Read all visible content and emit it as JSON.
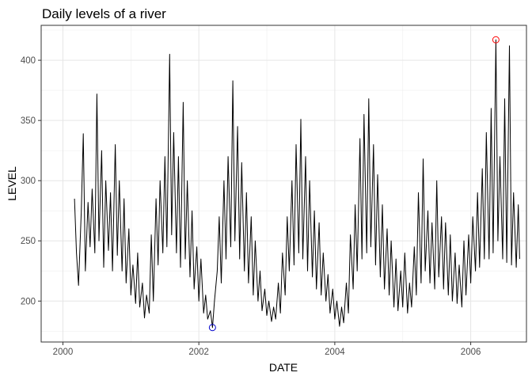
{
  "chart_data": {
    "type": "line",
    "title": "Daily levels of a river",
    "xlabel": "DATE",
    "ylabel": "LEVEL",
    "x_ticks": [
      "2000",
      "2002",
      "2004",
      "2006"
    ],
    "y_ticks": [
      200,
      250,
      300,
      350,
      400
    ],
    "xlim": [
      1999.68,
      2006.82
    ],
    "ylim": [
      166,
      429
    ],
    "grid": true,
    "line_color": "#000000",
    "series": [
      {
        "points": [
          [
            2000.17,
            285
          ],
          [
            2000.2,
            240
          ],
          [
            2000.23,
            213
          ],
          [
            2000.27,
            275
          ],
          [
            2000.3,
            339
          ],
          [
            2000.33,
            225
          ],
          [
            2000.37,
            282
          ],
          [
            2000.4,
            245
          ],
          [
            2000.43,
            293
          ],
          [
            2000.47,
            240
          ],
          [
            2000.5,
            372
          ],
          [
            2000.53,
            250
          ],
          [
            2000.57,
            325
          ],
          [
            2000.6,
            228
          ],
          [
            2000.63,
            300
          ],
          [
            2000.67,
            242
          ],
          [
            2000.7,
            290
          ],
          [
            2000.73,
            225
          ],
          [
            2000.77,
            330
          ],
          [
            2000.8,
            238
          ],
          [
            2000.83,
            300
          ],
          [
            2000.87,
            225
          ],
          [
            2000.9,
            285
          ],
          [
            2000.93,
            215
          ],
          [
            2000.97,
            260
          ],
          [
            2001.0,
            205
          ],
          [
            2001.03,
            230
          ],
          [
            2001.07,
            198
          ],
          [
            2001.1,
            240
          ],
          [
            2001.13,
            195
          ],
          [
            2001.17,
            215
          ],
          [
            2001.2,
            186
          ],
          [
            2001.23,
            205
          ],
          [
            2001.27,
            190
          ],
          [
            2001.3,
            255
          ],
          [
            2001.33,
            200
          ],
          [
            2001.37,
            285
          ],
          [
            2001.4,
            230
          ],
          [
            2001.43,
            300
          ],
          [
            2001.47,
            240
          ],
          [
            2001.5,
            320
          ],
          [
            2001.53,
            245
          ],
          [
            2001.57,
            405
          ],
          [
            2001.6,
            255
          ],
          [
            2001.63,
            340
          ],
          [
            2001.67,
            240
          ],
          [
            2001.7,
            320
          ],
          [
            2001.73,
            228
          ],
          [
            2001.77,
            365
          ],
          [
            2001.8,
            235
          ],
          [
            2001.83,
            300
          ],
          [
            2001.87,
            220
          ],
          [
            2001.9,
            275
          ],
          [
            2001.93,
            210
          ],
          [
            2001.97,
            245
          ],
          [
            2002.0,
            200
          ],
          [
            2002.03,
            235
          ],
          [
            2002.07,
            190
          ],
          [
            2002.1,
            205
          ],
          [
            2002.13,
            185
          ],
          [
            2002.17,
            192
          ],
          [
            2002.2,
            178
          ],
          [
            2002.23,
            200
          ],
          [
            2002.27,
            225
          ],
          [
            2002.3,
            270
          ],
          [
            2002.33,
            215
          ],
          [
            2002.37,
            300
          ],
          [
            2002.4,
            235
          ],
          [
            2002.43,
            320
          ],
          [
            2002.47,
            245
          ],
          [
            2002.5,
            383
          ],
          [
            2002.53,
            250
          ],
          [
            2002.57,
            345
          ],
          [
            2002.6,
            235
          ],
          [
            2002.63,
            315
          ],
          [
            2002.67,
            225
          ],
          [
            2002.7,
            290
          ],
          [
            2002.73,
            215
          ],
          [
            2002.77,
            270
          ],
          [
            2002.8,
            205
          ],
          [
            2002.83,
            250
          ],
          [
            2002.87,
            200
          ],
          [
            2002.9,
            225
          ],
          [
            2002.93,
            192
          ],
          [
            2002.97,
            210
          ],
          [
            2003.0,
            188
          ],
          [
            2003.03,
            200
          ],
          [
            2003.07,
            183
          ],
          [
            2003.1,
            195
          ],
          [
            2003.13,
            185
          ],
          [
            2003.17,
            215
          ],
          [
            2003.2,
            190
          ],
          [
            2003.23,
            240
          ],
          [
            2003.27,
            205
          ],
          [
            2003.3,
            270
          ],
          [
            2003.33,
            225
          ],
          [
            2003.37,
            300
          ],
          [
            2003.4,
            230
          ],
          [
            2003.43,
            330
          ],
          [
            2003.47,
            240
          ],
          [
            2003.5,
            351
          ],
          [
            2003.53,
            235
          ],
          [
            2003.57,
            320
          ],
          [
            2003.6,
            225
          ],
          [
            2003.63,
            300
          ],
          [
            2003.67,
            220
          ],
          [
            2003.7,
            275
          ],
          [
            2003.73,
            210
          ],
          [
            2003.77,
            265
          ],
          [
            2003.8,
            205
          ],
          [
            2003.83,
            240
          ],
          [
            2003.87,
            200
          ],
          [
            2003.9,
            222
          ],
          [
            2003.93,
            190
          ],
          [
            2003.97,
            210
          ],
          [
            2004.0,
            185
          ],
          [
            2004.03,
            200
          ],
          [
            2004.07,
            179
          ],
          [
            2004.1,
            195
          ],
          [
            2004.13,
            182
          ],
          [
            2004.17,
            215
          ],
          [
            2004.2,
            190
          ],
          [
            2004.23,
            255
          ],
          [
            2004.27,
            210
          ],
          [
            2004.3,
            280
          ],
          [
            2004.33,
            225
          ],
          [
            2004.37,
            335
          ],
          [
            2004.4,
            235
          ],
          [
            2004.43,
            355
          ],
          [
            2004.47,
            240
          ],
          [
            2004.5,
            368
          ],
          [
            2004.53,
            245
          ],
          [
            2004.57,
            330
          ],
          [
            2004.6,
            230
          ],
          [
            2004.63,
            305
          ],
          [
            2004.67,
            220
          ],
          [
            2004.7,
            280
          ],
          [
            2004.73,
            210
          ],
          [
            2004.77,
            260
          ],
          [
            2004.8,
            205
          ],
          [
            2004.83,
            250
          ],
          [
            2004.87,
            195
          ],
          [
            2004.9,
            235
          ],
          [
            2004.93,
            192
          ],
          [
            2004.97,
            225
          ],
          [
            2005.0,
            195
          ],
          [
            2005.03,
            240
          ],
          [
            2005.07,
            190
          ],
          [
            2005.1,
            215
          ],
          [
            2005.13,
            195
          ],
          [
            2005.17,
            245
          ],
          [
            2005.2,
            205
          ],
          [
            2005.23,
            290
          ],
          [
            2005.27,
            215
          ],
          [
            2005.3,
            318
          ],
          [
            2005.33,
            225
          ],
          [
            2005.37,
            275
          ],
          [
            2005.4,
            215
          ],
          [
            2005.43,
            265
          ],
          [
            2005.47,
            210
          ],
          [
            2005.5,
            300
          ],
          [
            2005.53,
            220
          ],
          [
            2005.57,
            270
          ],
          [
            2005.6,
            210
          ],
          [
            2005.63,
            265
          ],
          [
            2005.67,
            205
          ],
          [
            2005.7,
            255
          ],
          [
            2005.73,
            200
          ],
          [
            2005.77,
            240
          ],
          [
            2005.8,
            198
          ],
          [
            2005.83,
            230
          ],
          [
            2005.87,
            195
          ],
          [
            2005.9,
            250
          ],
          [
            2005.93,
            205
          ],
          [
            2005.97,
            255
          ],
          [
            2006.0,
            215
          ],
          [
            2006.03,
            270
          ],
          [
            2006.07,
            225
          ],
          [
            2006.1,
            290
          ],
          [
            2006.13,
            228
          ],
          [
            2006.17,
            310
          ],
          [
            2006.2,
            235
          ],
          [
            2006.23,
            340
          ],
          [
            2006.27,
            235
          ],
          [
            2006.3,
            360
          ],
          [
            2006.33,
            240
          ],
          [
            2006.37,
            417
          ],
          [
            2006.4,
            250
          ],
          [
            2006.43,
            320
          ],
          [
            2006.47,
            235
          ],
          [
            2006.5,
            368
          ],
          [
            2006.53,
            232
          ],
          [
            2006.57,
            412
          ],
          [
            2006.6,
            230
          ],
          [
            2006.63,
            290
          ],
          [
            2006.67,
            228
          ],
          [
            2006.7,
            280
          ],
          [
            2006.72,
            235
          ]
        ]
      }
    ],
    "highlights": [
      {
        "label": "maximum",
        "x": 2006.37,
        "y": 417,
        "color": "#ff0000"
      },
      {
        "label": "minimum",
        "x": 2002.2,
        "y": 178,
        "color": "#0000cd"
      }
    ]
  }
}
